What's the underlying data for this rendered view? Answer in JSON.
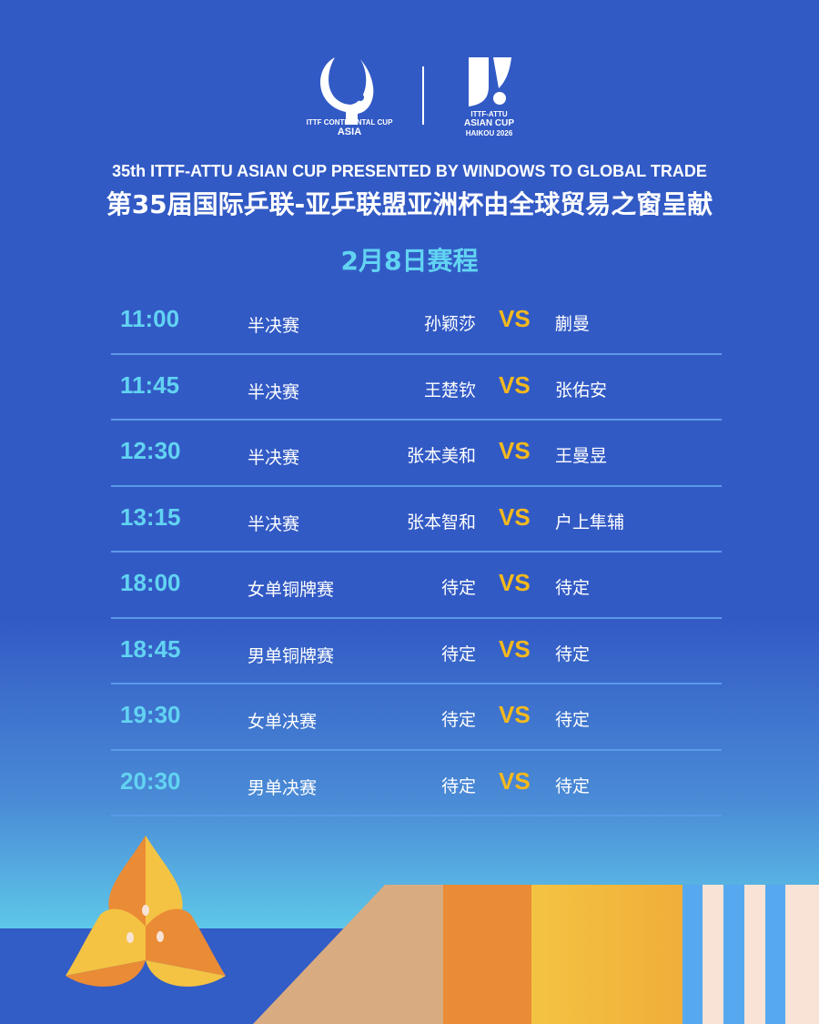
{
  "logos": {
    "left": {
      "line1": "ITTF CONTINENTAL CUP",
      "line2": "ASIA"
    },
    "right": {
      "line1": "ITTF-ATTU",
      "line2": "ASIAN CUP",
      "line3": "HAIKOU 2026"
    }
  },
  "title_en": "35th ITTF-ATTU ASIAN CUP PRESENTED BY WINDOWS TO GLOBAL TRADE",
  "title_cn": "第35届国际乒联-亚乒联盟亚洲杯由全球贸易之窗呈献",
  "date_heading": "2月8日赛程",
  "vs_label": "VS",
  "colors": {
    "background": "#325ac5",
    "time": "#62d3f2",
    "vs": "#f5b91e",
    "divider": "#5b9ae8"
  },
  "matches": [
    {
      "time": "11:00",
      "event": "半决赛",
      "player1": "孙颖莎",
      "player2": "蒯曼"
    },
    {
      "time": "11:45",
      "event": "半决赛",
      "player1": "王楚钦",
      "player2": "张佑安"
    },
    {
      "time": "12:30",
      "event": "半决赛",
      "player1": "张本美和",
      "player2": "王曼昱"
    },
    {
      "time": "13:15",
      "event": "半决赛",
      "player1": "张本智和",
      "player2": "户上隼辅"
    },
    {
      "time": "18:00",
      "event": "女单铜牌赛",
      "player1": "待定",
      "player2": "待定"
    },
    {
      "time": "18:45",
      "event": "男单铜牌赛",
      "player1": "待定",
      "player2": "待定"
    },
    {
      "time": "19:30",
      "event": "女单决赛",
      "player1": "待定",
      "player2": "待定"
    },
    {
      "time": "20:30",
      "event": "男单决赛",
      "player1": "待定",
      "player2": "待定"
    }
  ]
}
